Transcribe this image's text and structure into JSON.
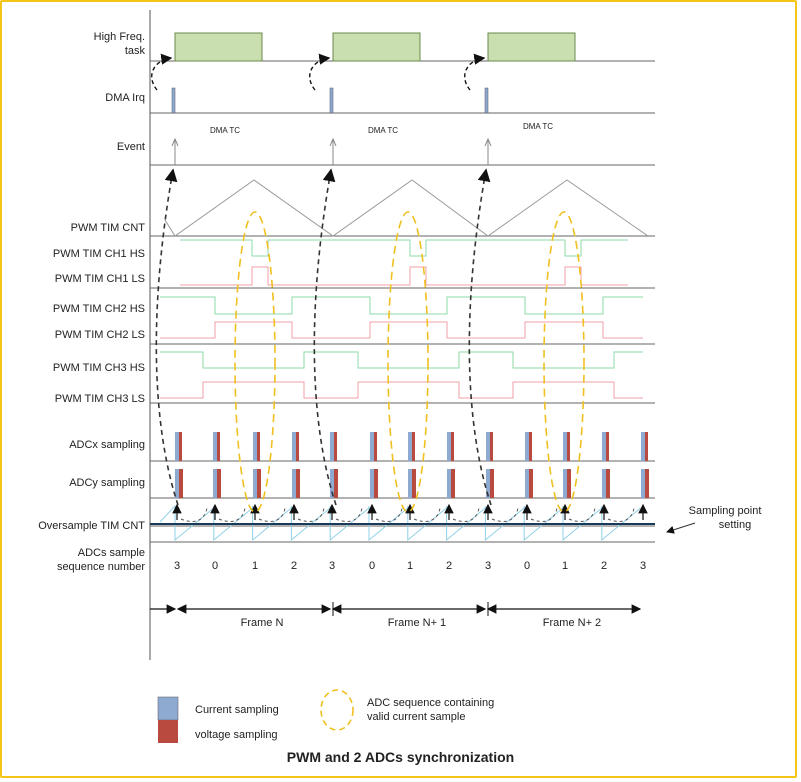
{
  "title": "PWM and 2 ADCs synchronization",
  "row_labels": {
    "high_freq_task": "High Freq.\ntask",
    "dma_irq": "DMA Irq",
    "event": "Event",
    "pwm_cnt": "PWM TIM CNT",
    "ch1_hs": "PWM TIM CH1 HS",
    "ch1_ls": "PWM TIM CH1 LS",
    "ch2_hs": "PWM TIM CH2 HS",
    "ch2_ls": "PWM TIM CH2 LS",
    "ch3_hs": "PWM TIM CH3 HS",
    "ch3_ls": "PWM TIM CH3 LS",
    "adcx": "ADCx sampling",
    "adcy": "ADCy sampling",
    "os_cnt": "Oversample TIM CNT",
    "seq_num": "ADCs sample\nsequence number"
  },
  "dma_tc_label": "DMA TC",
  "sequence_numbers": [
    "3",
    "0",
    "1",
    "2",
    "3",
    "0",
    "1",
    "2",
    "3",
    "0",
    "1",
    "2",
    "3"
  ],
  "frames": [
    "Frame N",
    "Frame N+ 1",
    "Frame N+ 2"
  ],
  "sampling_point_label": "Sampling point\nsetting",
  "legend": {
    "current": "Current sampling",
    "voltage": "voltage sampling",
    "sequence": "ADC sequence containing\nvalid current sample"
  },
  "colors": {
    "task": "#c9dfb0",
    "task_border": "#6a8a4a",
    "current": "#8faad0",
    "voltage": "#b84a40",
    "hs": "#8fd8a8",
    "ls": "#f2a0a8",
    "triangle": "#9a9a9a",
    "sawtooth": "#8fd0e8",
    "ellipse": "#f0c020",
    "frame_border": "#f5c518"
  }
}
